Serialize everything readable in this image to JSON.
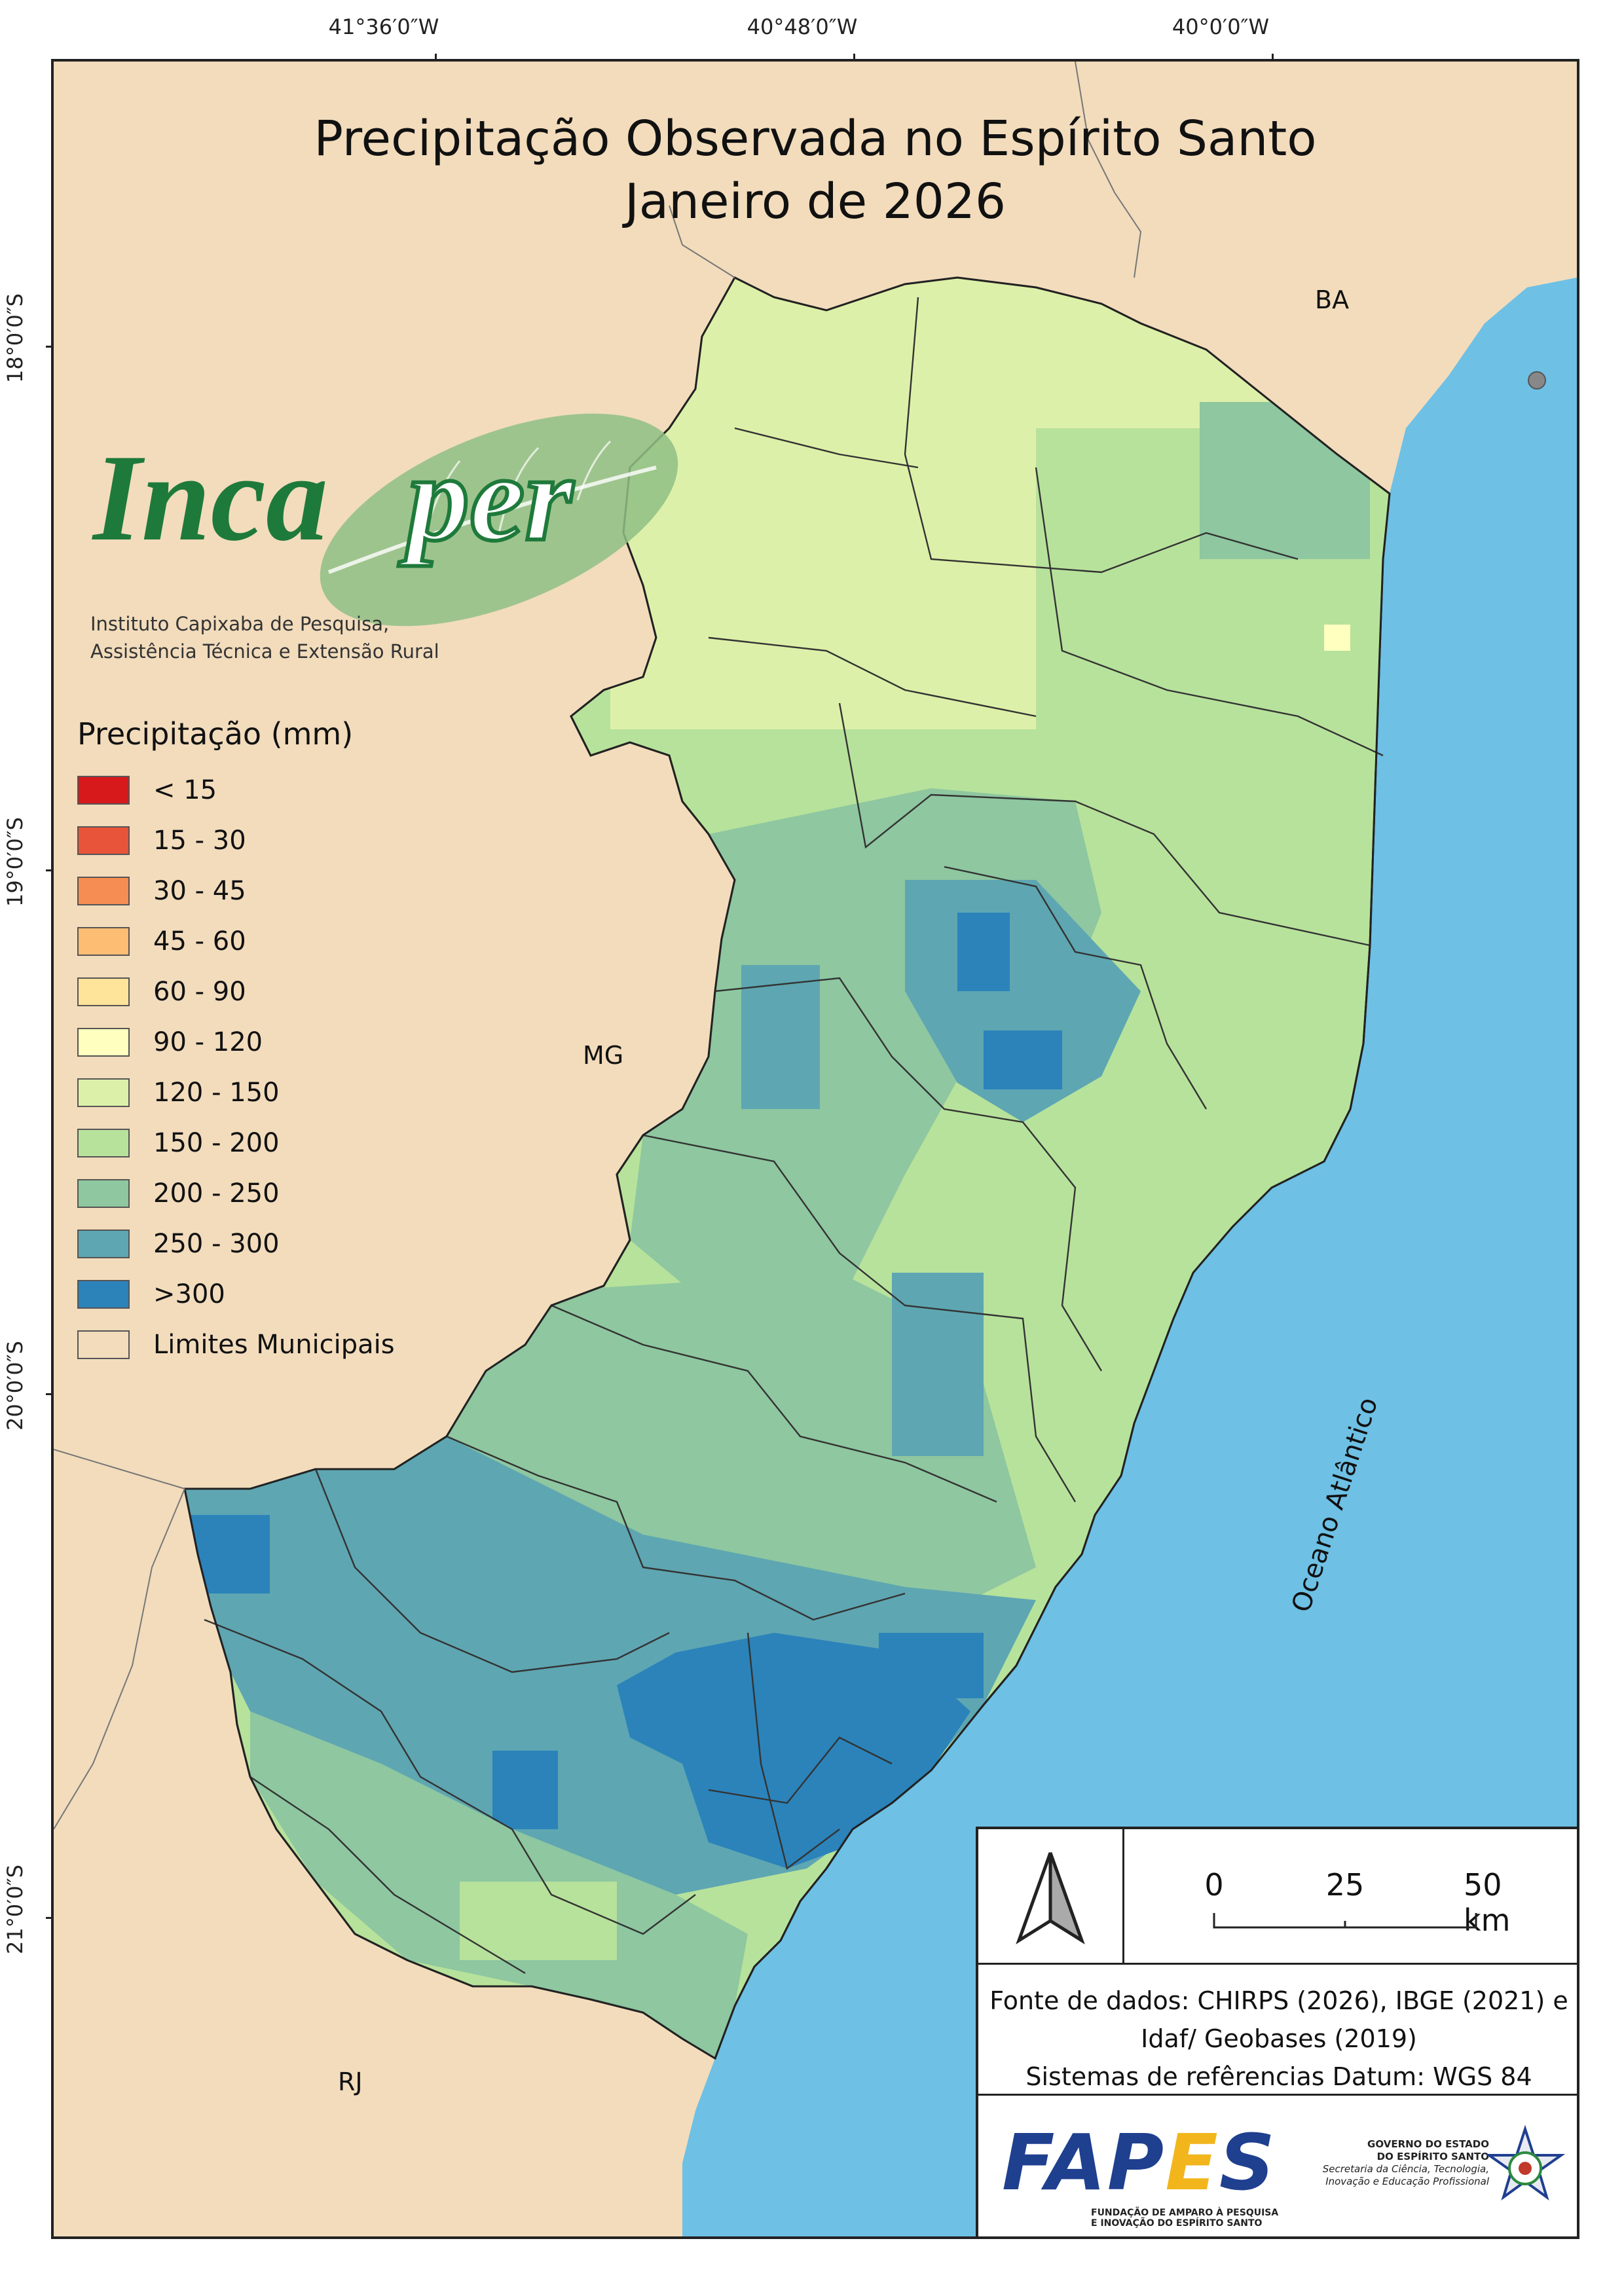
{
  "title": {
    "line1": "Precipitação Observada no Espírito Santo",
    "line2": "Janeiro de 2026"
  },
  "coordinates": {
    "top": [
      "41°36′0″W",
      "40°48′0″W",
      "40°0′0″W"
    ],
    "left": [
      "18°0′0″S",
      "19°0′0″S",
      "20°0′0″S",
      "21°0′0″S"
    ]
  },
  "logo": {
    "name": "Incaper",
    "subtitle_line1": "Instituto Capixaba de Pesquisa,",
    "subtitle_line2": "Assistência Técnica e Extensão Rural"
  },
  "legend": {
    "title": "Precipitação (mm)",
    "items": [
      {
        "label": "< 15",
        "color": "#d7191c"
      },
      {
        "label": "15 - 30",
        "color": "#e8543a"
      },
      {
        "label": "30 - 45",
        "color": "#f68d52"
      },
      {
        "label": "45 - 60",
        "color": "#fdbe74"
      },
      {
        "label": "60 - 90",
        "color": "#fee39a"
      },
      {
        "label": "90 - 120",
        "color": "#ffffbf"
      },
      {
        "label": "120 - 150",
        "color": "#ddf0a9"
      },
      {
        "label": "150 - 200",
        "color": "#b7e29b"
      },
      {
        "label": "200 - 250",
        "color": "#8ec7a0"
      },
      {
        "label": "250 - 300",
        "color": "#5ea6b2"
      },
      {
        "label": ">300",
        "color": "#2b83ba"
      },
      {
        "label": "Limites Municipais",
        "color": "#f2dcbc"
      }
    ]
  },
  "places": {
    "ba": "BA",
    "mg": "MG",
    "rj": "RJ",
    "ocean": "Oceano Atlântico"
  },
  "scale": {
    "zero": "0",
    "mid": "25",
    "end": "50 km"
  },
  "source": {
    "line1": "Fonte de dados: CHIRPS (2026), IBGE (2021) e",
    "line2": "Idaf/ Geobases (2019)",
    "line3": "Sistemas de refêrencias Datum: WGS 84"
  },
  "fapes": {
    "name": "FAPES",
    "sub1": "FUNDAÇÃO DE AMPARO À PESQUISA",
    "sub2": "E INOVAÇÃO DO ESPÍRITO SANTO"
  },
  "gov": {
    "line1": "GOVERNO DO ESTADO",
    "line2": "DO ESPÍRITO SANTO",
    "line3": "Secretaria da Ciência, Tecnologia,",
    "line4": "Inovação e Educação Profissional"
  },
  "colors": {
    "land": "#f2dcbc",
    "ocean": "#6ec0e5",
    "state_base": "#b7e29b"
  }
}
